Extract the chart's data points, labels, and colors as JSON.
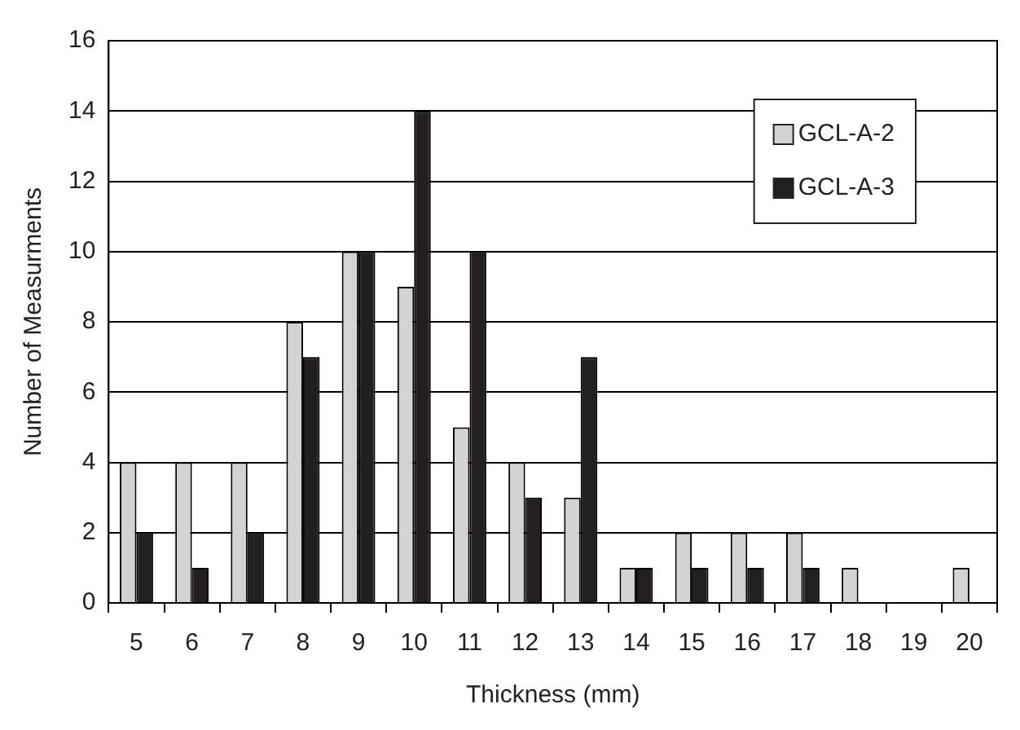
{
  "chart_data": {
    "type": "bar",
    "xlabel": "Thickness (mm)",
    "ylabel": "Number of Measurments",
    "categories": [
      "5",
      "6",
      "7",
      "8",
      "9",
      "10",
      "11",
      "12",
      "13",
      "14",
      "15",
      "16",
      "17",
      "18",
      "19",
      "20"
    ],
    "series": [
      {
        "name": "GCL-A-2",
        "color": "#d3d3d3",
        "values": [
          4,
          4,
          4,
          8,
          10,
          9,
          5,
          4,
          3,
          1,
          2,
          2,
          2,
          1,
          0,
          1
        ]
      },
      {
        "name": "GCL-A-3",
        "color": "#231f20",
        "values": [
          2,
          1,
          2,
          7,
          10,
          14,
          10,
          3,
          7,
          1,
          1,
          1,
          1,
          0,
          0,
          0
        ]
      }
    ],
    "ylim": [
      0,
      16
    ],
    "yticks": [
      0,
      2,
      4,
      6,
      8,
      10,
      12,
      14,
      16
    ],
    "grid": "y",
    "legend": "top right"
  }
}
